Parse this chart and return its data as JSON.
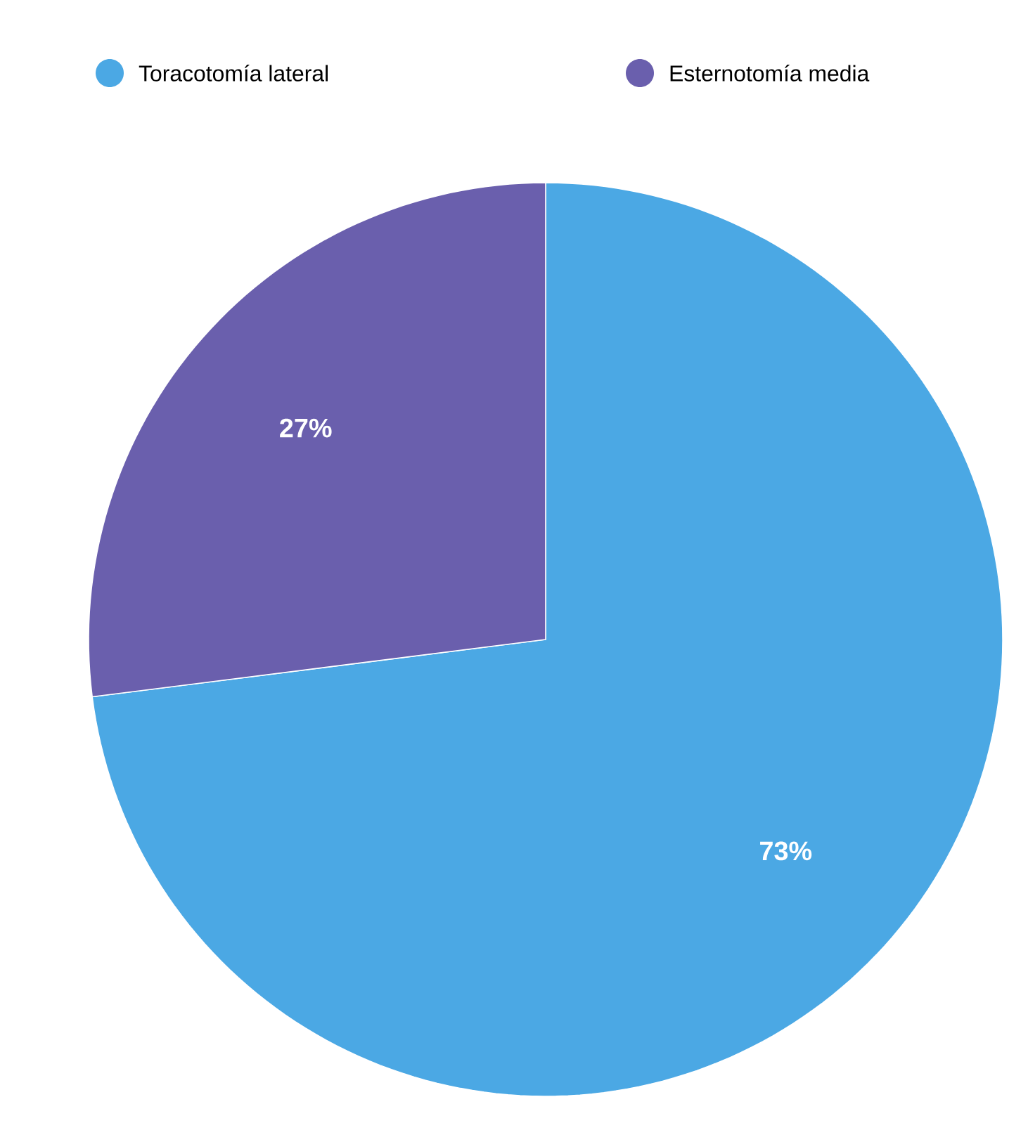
{
  "chart_data": {
    "type": "pie",
    "categories": [
      "Toracotomía lateral",
      "Esternotomía media"
    ],
    "values": [
      73,
      27
    ],
    "colors": [
      "#4ba8e4",
      "#6a5fad"
    ],
    "value_labels": [
      "73%",
      "27%"
    ],
    "legend": "top"
  }
}
